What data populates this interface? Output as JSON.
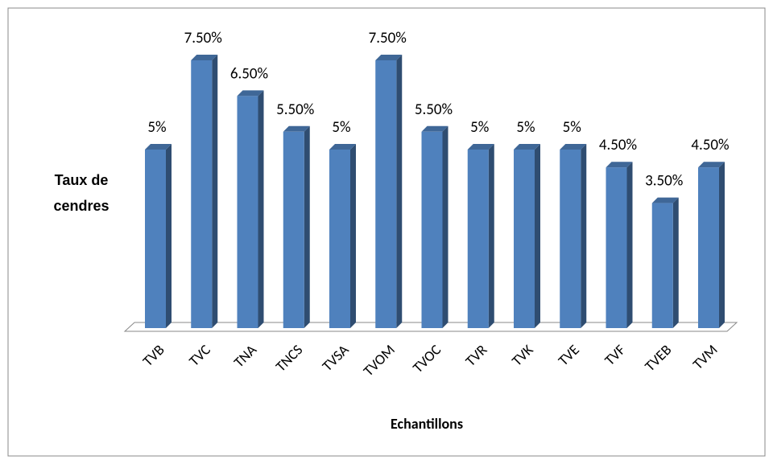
{
  "chart_data": {
    "type": "bar",
    "three_d": true,
    "x_label": "Echantillons",
    "y_label": "Taux de cendres",
    "categories": [
      "TVB",
      "TVC",
      "TNA",
      "TNCS",
      "TVSA",
      "TVOM",
      "TVOC",
      "TVR",
      "TVK",
      "TVE",
      "TVF",
      "TVEB",
      "TVM"
    ],
    "values": [
      5,
      7.5,
      6.5,
      5.5,
      5,
      7.5,
      5.5,
      5,
      5,
      5,
      4.5,
      3.5,
      4.5
    ],
    "value_labels": [
      "5%",
      "7.50%",
      "6.50%",
      "5.50%",
      "5%",
      "7.50%",
      "5.50%",
      "5%",
      "5%",
      "5%",
      "4.50%",
      "3.50%",
      "4.50%"
    ],
    "color": "#4f81bd"
  }
}
